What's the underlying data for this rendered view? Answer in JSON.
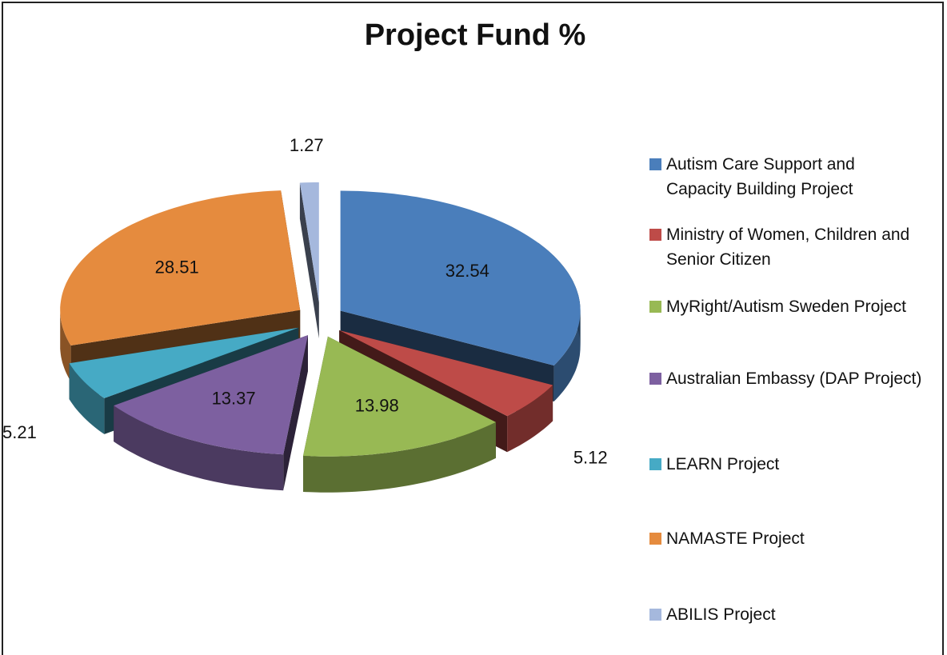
{
  "chart_data": {
    "type": "pie",
    "title": "Project Fund %",
    "categories": [
      "Autism Care Support and Capacity Building Project",
      "Ministry of Women, Children and Senior Citizen",
      "MyRight/Autism Sweden Project",
      "Australian Embassy (DAP Project)",
      "LEARN Project",
      "NAMASTE Project",
      "ABILIS Project"
    ],
    "values": [
      32.54,
      5.12,
      13.98,
      13.37,
      5.21,
      28.51,
      1.27
    ],
    "colors": [
      "#4a7ebb",
      "#be4b48",
      "#98b954",
      "#7d60a0",
      "#46aac5",
      "#e58b3e",
      "#a5b8dd"
    ],
    "legend": "right"
  }
}
